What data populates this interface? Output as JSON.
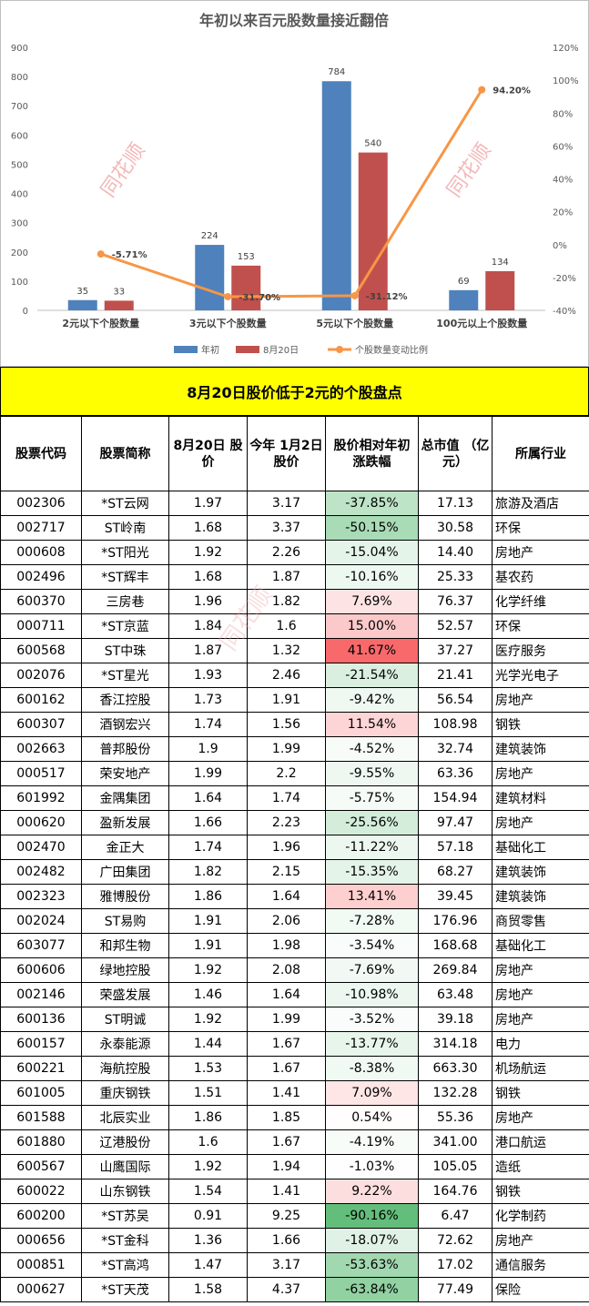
{
  "chart_data": {
    "type": "bar",
    "title": "年初以来百元股数量接近翻倍",
    "categories": [
      "2元以下个股数量",
      "3元以下个股数量",
      "5元以下个股数量",
      "100元以上个股数量"
    ],
    "series": [
      {
        "name": "年初",
        "type": "bar",
        "axis": "left",
        "color": "#4f81bd",
        "values": [
          35,
          224,
          784,
          69
        ]
      },
      {
        "name": "8月20日",
        "type": "bar",
        "axis": "left",
        "color": "#c0504d",
        "values": [
          33,
          153,
          540,
          134
        ]
      },
      {
        "name": "个股数量变动比例",
        "type": "line",
        "axis": "right",
        "color": "#f79646",
        "values": [
          -5.71,
          -31.7,
          -31.12,
          94.2
        ],
        "labels": [
          "-5.71%",
          "-31.70%",
          "-31.12%",
          "94.20%"
        ]
      }
    ],
    "y_left": {
      "min": 0,
      "max": 900,
      "ticks": [
        "0",
        "100",
        "200",
        "300",
        "400",
        "500",
        "600",
        "700",
        "800",
        "900"
      ]
    },
    "y_right": {
      "min": -40,
      "max": 120,
      "ticks": [
        "-40%",
        "-20%",
        "0%",
        "20%",
        "40%",
        "60%",
        "80%",
        "100%",
        "120%"
      ]
    },
    "grid": false,
    "legend": "bottom",
    "watermarks": [
      "同花顺",
      "同花顺"
    ]
  },
  "banner": "8月20日股价低于2元的个股盘点",
  "table": {
    "headers": [
      "股票代码",
      "股票简称",
      "8月20日 股价",
      "今年 1月2日 股价",
      "股价相对年初 涨跌幅",
      "总市值 （亿元）",
      "所属行业"
    ],
    "rows": [
      [
        "002306",
        "*ST云网",
        "1.97",
        "3.17",
        "-37.85%",
        "17.13",
        "旅游及酒店"
      ],
      [
        "002717",
        "ST岭南",
        "1.68",
        "3.37",
        "-50.15%",
        "30.58",
        "环保"
      ],
      [
        "000608",
        "*ST阳光",
        "1.92",
        "2.26",
        "-15.04%",
        "14.40",
        "房地产"
      ],
      [
        "002496",
        "*ST辉丰",
        "1.68",
        "1.87",
        "-10.16%",
        "25.33",
        "基农药"
      ],
      [
        "600370",
        "三房巷",
        "1.96",
        "1.82",
        "7.69%",
        "76.37",
        "化学纤维"
      ],
      [
        "000711",
        "*ST京蓝",
        "1.84",
        "1.6",
        "15.00%",
        "52.57",
        "环保"
      ],
      [
        "600568",
        "ST中珠",
        "1.87",
        "1.32",
        "41.67%",
        "37.27",
        "医疗服务"
      ],
      [
        "002076",
        "*ST星光",
        "1.93",
        "2.46",
        "-21.54%",
        "21.41",
        "光学光电子"
      ],
      [
        "600162",
        "香江控股",
        "1.73",
        "1.91",
        "-9.42%",
        "56.54",
        "房地产"
      ],
      [
        "600307",
        "酒钢宏兴",
        "1.74",
        "1.56",
        "11.54%",
        "108.98",
        "钢铁"
      ],
      [
        "002663",
        "普邦股份",
        "1.9",
        "1.99",
        "-4.52%",
        "32.74",
        "建筑装饰"
      ],
      [
        "000517",
        "荣安地产",
        "1.99",
        "2.2",
        "-9.55%",
        "63.36",
        "房地产"
      ],
      [
        "601992",
        "金隅集团",
        "1.64",
        "1.74",
        "-5.75%",
        "154.94",
        "建筑材料"
      ],
      [
        "000620",
        "盈新发展",
        "1.66",
        "2.23",
        "-25.56%",
        "97.47",
        "房地产"
      ],
      [
        "002470",
        "金正大",
        "1.74",
        "1.96",
        "-11.22%",
        "57.18",
        "基础化工"
      ],
      [
        "002482",
        "广田集团",
        "1.82",
        "2.15",
        "-15.35%",
        "68.27",
        "建筑装饰"
      ],
      [
        "002323",
        "雅博股份",
        "1.86",
        "1.64",
        "13.41%",
        "39.45",
        "建筑装饰"
      ],
      [
        "002024",
        "ST易购",
        "1.91",
        "2.06",
        "-7.28%",
        "176.96",
        "商贸零售"
      ],
      [
        "603077",
        "和邦生物",
        "1.91",
        "1.98",
        "-3.54%",
        "168.68",
        "基础化工"
      ],
      [
        "600606",
        "绿地控股",
        "1.92",
        "2.08",
        "-7.69%",
        "269.84",
        "房地产"
      ],
      [
        "002146",
        "荣盛发展",
        "1.46",
        "1.64",
        "-10.98%",
        "63.48",
        "房地产"
      ],
      [
        "600136",
        "ST明诚",
        "1.92",
        "1.99",
        "-3.52%",
        "39.18",
        "房地产"
      ],
      [
        "600157",
        "永泰能源",
        "1.44",
        "1.67",
        "-13.77%",
        "314.18",
        "电力"
      ],
      [
        "600221",
        "海航控股",
        "1.53",
        "1.67",
        "-8.38%",
        "663.30",
        "机场航运"
      ],
      [
        "601005",
        "重庆钢铁",
        "1.51",
        "1.41",
        "7.09%",
        "132.28",
        "钢铁"
      ],
      [
        "601588",
        "北辰实业",
        "1.86",
        "1.85",
        "0.54%",
        "55.36",
        "房地产"
      ],
      [
        "601880",
        "辽港股份",
        "1.6",
        "1.67",
        "-4.19%",
        "341.00",
        "港口航运"
      ],
      [
        "600567",
        "山鹰国际",
        "1.92",
        "1.94",
        "-1.03%",
        "105.05",
        "造纸"
      ],
      [
        "600022",
        "山东钢铁",
        "1.54",
        "1.41",
        "9.22%",
        "164.76",
        "钢铁"
      ],
      [
        "600200",
        "*ST苏吴",
        "0.91",
        "9.25",
        "-90.16%",
        "6.47",
        "化学制药"
      ],
      [
        "000656",
        "*ST金科",
        "1.36",
        "1.66",
        "-18.07%",
        "72.62",
        "房地产"
      ],
      [
        "000851",
        "*ST高鸿",
        "1.47",
        "3.17",
        "-53.63%",
        "17.02",
        "通信服务"
      ],
      [
        "000627",
        "*ST天茂",
        "1.58",
        "4.37",
        "-63.84%",
        "77.49",
        "保险"
      ]
    ]
  }
}
